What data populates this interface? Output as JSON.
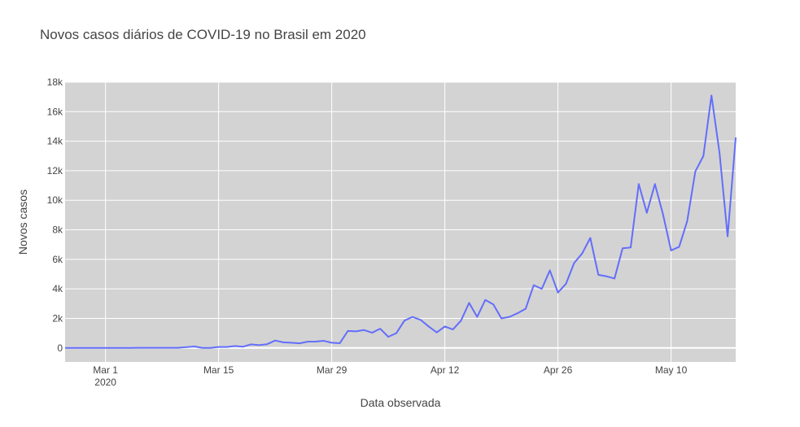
{
  "chart_data": {
    "type": "line",
    "title": "Novos casos diários de COVID-19 no Brasil em 2020",
    "xlabel": "Data observada",
    "ylabel": "Novos casos",
    "x_ticks": [
      {
        "date": "2020-03-01",
        "label": "Mar 1",
        "sublabel": "2020"
      },
      {
        "date": "2020-03-15",
        "label": "Mar 15",
        "sublabel": ""
      },
      {
        "date": "2020-03-29",
        "label": "Mar 29",
        "sublabel": ""
      },
      {
        "date": "2020-04-12",
        "label": "Apr 12",
        "sublabel": ""
      },
      {
        "date": "2020-04-26",
        "label": "Apr 26",
        "sublabel": ""
      },
      {
        "date": "2020-05-10",
        "label": "May 10",
        "sublabel": ""
      }
    ],
    "y_ticks": [
      {
        "value": 0,
        "label": "0"
      },
      {
        "value": 2000,
        "label": "2k"
      },
      {
        "value": 4000,
        "label": "4k"
      },
      {
        "value": 6000,
        "label": "6k"
      },
      {
        "value": 8000,
        "label": "8k"
      },
      {
        "value": 10000,
        "label": "10k"
      },
      {
        "value": 12000,
        "label": "12k"
      },
      {
        "value": 14000,
        "label": "14k"
      },
      {
        "value": 16000,
        "label": "16k"
      },
      {
        "value": 18000,
        "label": "18k"
      }
    ],
    "xlim": [
      "2020-02-25",
      "2020-05-18"
    ],
    "ylim": [
      -950,
      18000
    ],
    "grid": true,
    "colors": {
      "line": "#636efa",
      "plot_bg": "#d3d3d3",
      "grid": "#ffffff",
      "text": "#444444"
    },
    "series": [
      {
        "x": [
          "2020-02-25",
          "2020-02-26",
          "2020-02-27",
          "2020-02-28",
          "2020-02-29",
          "2020-03-01",
          "2020-03-02",
          "2020-03-03",
          "2020-03-04",
          "2020-03-05",
          "2020-03-06",
          "2020-03-07",
          "2020-03-08",
          "2020-03-09",
          "2020-03-10",
          "2020-03-11",
          "2020-03-12",
          "2020-03-13",
          "2020-03-14",
          "2020-03-15",
          "2020-03-16",
          "2020-03-17",
          "2020-03-18",
          "2020-03-19",
          "2020-03-20",
          "2020-03-21",
          "2020-03-22",
          "2020-03-23",
          "2020-03-24",
          "2020-03-25",
          "2020-03-26",
          "2020-03-27",
          "2020-03-28",
          "2020-03-29",
          "2020-03-30",
          "2020-03-31",
          "2020-04-01",
          "2020-04-02",
          "2020-04-03",
          "2020-04-04",
          "2020-04-05",
          "2020-04-06",
          "2020-04-07",
          "2020-04-08",
          "2020-04-09",
          "2020-04-10",
          "2020-04-11",
          "2020-04-12",
          "2020-04-13",
          "2020-04-14",
          "2020-04-15",
          "2020-04-16",
          "2020-04-17",
          "2020-04-18",
          "2020-04-19",
          "2020-04-20",
          "2020-04-21",
          "2020-04-22",
          "2020-04-23",
          "2020-04-24",
          "2020-04-25",
          "2020-04-26",
          "2020-04-27",
          "2020-04-28",
          "2020-04-29",
          "2020-04-30",
          "2020-05-01",
          "2020-05-02",
          "2020-05-03",
          "2020-05-04",
          "2020-05-05",
          "2020-05-06",
          "2020-05-07",
          "2020-05-08",
          "2020-05-09",
          "2020-05-10",
          "2020-05-11",
          "2020-05-12",
          "2020-05-13",
          "2020-05-14",
          "2020-05-15",
          "2020-05-16",
          "2020-05-17",
          "2020-05-18"
        ],
        "values": [
          1,
          0,
          0,
          0,
          1,
          0,
          0,
          0,
          2,
          5,
          5,
          6,
          5,
          5,
          5,
          52,
          97,
          0,
          0,
          60,
          60,
          122,
          80,
          240,
          190,
          250,
          500,
          380,
          350,
          310,
          420,
          430,
          480,
          350,
          320,
          1150,
          1120,
          1210,
          1030,
          1300,
          750,
          1000,
          1850,
          2100,
          1900,
          1450,
          1050,
          1450,
          1250,
          1850,
          3050,
          2100,
          3250,
          2950,
          2000,
          2100,
          2350,
          2650,
          4250,
          4000,
          5250,
          3750,
          4350,
          5750,
          6400,
          7450,
          4950,
          4850,
          4700,
          6750,
          6800,
          11100,
          9150,
          11100,
          9050,
          6600,
          6850,
          8600,
          11950,
          13000,
          17100,
          13200,
          7550,
          14250
        ]
      }
    ]
  }
}
